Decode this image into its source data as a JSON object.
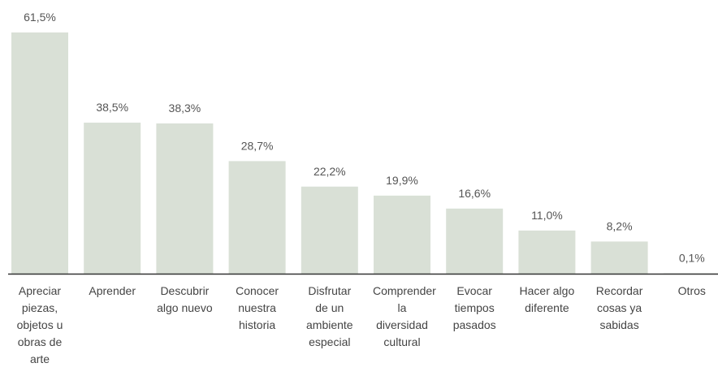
{
  "chart_data": {
    "type": "bar",
    "categories": [
      "Apreciar piezas, objetos u obras de arte",
      "Aprender",
      "Descubrir algo nuevo",
      "Conocer nuestra historia",
      "Disfrutar de un ambiente especial",
      "Comprender la diversidad cultural",
      "Evocar tiempos pasados",
      "Hacer algo diferente",
      "Recordar cosas ya sabidas",
      "Otros"
    ],
    "values": [
      61.5,
      38.5,
      38.3,
      28.7,
      22.2,
      19.9,
      16.6,
      11.0,
      8.2,
      0.1
    ],
    "value_labels": [
      "61,5%",
      "38,5%",
      "38,3%",
      "28,7%",
      "22,2%",
      "19,9%",
      "16,6%",
      "11,0%",
      "8,2%",
      "0,1%"
    ],
    "color": "#d9e0d6"
  }
}
